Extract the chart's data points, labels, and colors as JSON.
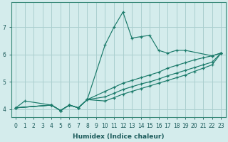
{
  "xlabel": "Humidex (Indice chaleur)",
  "bg_color": "#d4ecec",
  "grid_color": "#aacfcf",
  "line_color": "#1a7a6a",
  "xlim": [
    -0.5,
    23.5
  ],
  "ylim": [
    3.7,
    7.9
  ],
  "xticks": [
    0,
    1,
    2,
    3,
    4,
    5,
    6,
    7,
    8,
    9,
    10,
    11,
    12,
    13,
    14,
    15,
    16,
    17,
    18,
    19,
    20,
    21,
    22,
    23
  ],
  "yticks": [
    4,
    5,
    6,
    7
  ],
  "lines": [
    {
      "x": [
        0,
        1,
        4,
        5,
        6,
        7,
        8,
        10,
        11,
        12,
        13,
        14,
        15,
        16,
        17,
        18,
        19,
        22,
        23
      ],
      "y": [
        4.05,
        4.3,
        4.15,
        3.95,
        4.15,
        4.05,
        4.35,
        6.35,
        7.0,
        7.55,
        6.6,
        6.65,
        6.7,
        6.15,
        6.05,
        6.15,
        6.15,
        5.95,
        6.05
      ]
    },
    {
      "x": [
        0,
        4,
        5,
        6,
        7,
        8,
        10,
        11,
        12,
        13,
        14,
        15,
        16,
        17,
        18,
        19,
        20,
        21,
        22,
        23
      ],
      "y": [
        4.05,
        4.15,
        3.95,
        4.15,
        4.05,
        4.35,
        4.65,
        4.8,
        4.95,
        5.05,
        5.15,
        5.25,
        5.35,
        5.5,
        5.6,
        5.7,
        5.8,
        5.88,
        5.95,
        6.05
      ]
    },
    {
      "x": [
        0,
        4,
        5,
        6,
        7,
        8,
        10,
        11,
        12,
        13,
        14,
        15,
        16,
        17,
        18,
        19,
        20,
        21,
        22,
        23
      ],
      "y": [
        4.05,
        4.15,
        3.95,
        4.15,
        4.05,
        4.35,
        4.45,
        4.58,
        4.72,
        4.82,
        4.92,
        5.0,
        5.1,
        5.22,
        5.32,
        5.42,
        5.52,
        5.62,
        5.72,
        6.05
      ]
    },
    {
      "x": [
        0,
        4,
        5,
        6,
        7,
        8,
        10,
        11,
        12,
        13,
        14,
        15,
        16,
        17,
        18,
        19,
        20,
        21,
        22,
        23
      ],
      "y": [
        4.05,
        4.15,
        3.95,
        4.15,
        4.05,
        4.35,
        4.3,
        4.42,
        4.55,
        4.65,
        4.75,
        4.85,
        4.95,
        5.05,
        5.15,
        5.25,
        5.38,
        5.5,
        5.62,
        6.05
      ]
    }
  ]
}
